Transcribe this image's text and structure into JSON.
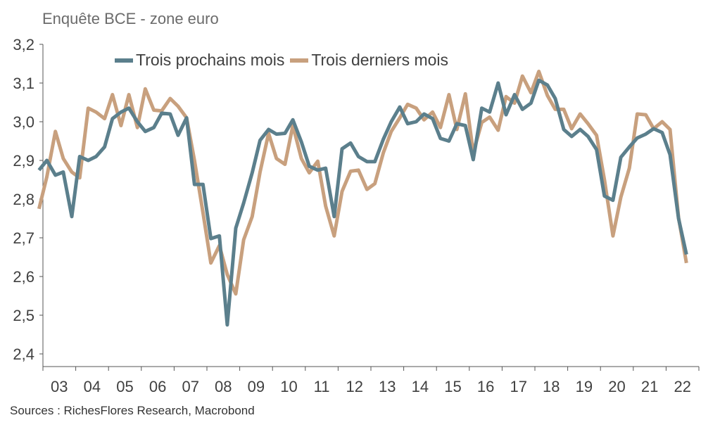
{
  "header": {
    "title": "Enquête BCE - zone euro"
  },
  "footer": {
    "source": "Sources : RichesFlores Research, Macrobond"
  },
  "colors": {
    "series1": "#5b7f8c",
    "series2": "#c8a07e",
    "axis": "#555555"
  },
  "chart_data": {
    "type": "line",
    "title": "Enquête BCE - zone euro",
    "xlabel": "",
    "ylabel": "",
    "ylim": [
      2.4,
      3.2
    ],
    "xlim": [
      2002.75,
      2022.75
    ],
    "y_ticks": [
      "2,4",
      "2,5",
      "2,6",
      "2,7",
      "2,8",
      "2,9",
      "3,0",
      "3,1",
      "3,2"
    ],
    "x_ticks": [
      "03",
      "04",
      "05",
      "06",
      "07",
      "08",
      "09",
      "10",
      "11",
      "12",
      "13",
      "14",
      "15",
      "16",
      "17",
      "18",
      "19",
      "20",
      "21",
      "22"
    ],
    "grid": false,
    "legend_position": "top-left",
    "series": [
      {
        "name": "Trois prochains mois",
        "color": "#5b7f8c",
        "points": [
          [
            2002.88,
            2.875
          ],
          [
            2003.12,
            2.9
          ],
          [
            2003.38,
            2.862
          ],
          [
            2003.62,
            2.87
          ],
          [
            2003.88,
            2.755
          ],
          [
            2004.12,
            2.91
          ],
          [
            2004.38,
            2.9
          ],
          [
            2004.62,
            2.91
          ],
          [
            2004.88,
            2.935
          ],
          [
            2005.12,
            3.008
          ],
          [
            2005.38,
            3.025
          ],
          [
            2005.62,
            3.035
          ],
          [
            2005.88,
            3.0
          ],
          [
            2006.12,
            2.975
          ],
          [
            2006.38,
            2.985
          ],
          [
            2006.62,
            3.022
          ],
          [
            2006.88,
            3.02
          ],
          [
            2007.12,
            2.965
          ],
          [
            2007.38,
            3.01
          ],
          [
            2007.62,
            2.838
          ],
          [
            2007.88,
            2.838
          ],
          [
            2008.12,
            2.698
          ],
          [
            2008.38,
            2.705
          ],
          [
            2008.62,
            2.475
          ],
          [
            2008.88,
            2.725
          ],
          [
            2009.12,
            2.79
          ],
          [
            2009.38,
            2.868
          ],
          [
            2009.62,
            2.952
          ],
          [
            2009.88,
            2.98
          ],
          [
            2010.12,
            2.968
          ],
          [
            2010.38,
            2.97
          ],
          [
            2010.62,
            3.005
          ],
          [
            2010.88,
            2.948
          ],
          [
            2011.12,
            2.885
          ],
          [
            2011.38,
            2.875
          ],
          [
            2011.62,
            2.88
          ],
          [
            2011.88,
            2.755
          ],
          [
            2012.12,
            2.93
          ],
          [
            2012.38,
            2.945
          ],
          [
            2012.62,
            2.91
          ],
          [
            2012.88,
            2.897
          ],
          [
            2013.12,
            2.897
          ],
          [
            2013.38,
            2.955
          ],
          [
            2013.62,
            3.0
          ],
          [
            2013.88,
            3.038
          ],
          [
            2014.12,
            2.995
          ],
          [
            2014.38,
            3.0
          ],
          [
            2014.62,
            3.02
          ],
          [
            2014.88,
            3.008
          ],
          [
            2015.12,
            2.957
          ],
          [
            2015.38,
            2.95
          ],
          [
            2015.62,
            2.995
          ],
          [
            2015.88,
            2.99
          ],
          [
            2016.12,
            2.902
          ],
          [
            2016.38,
            3.035
          ],
          [
            2016.62,
            3.025
          ],
          [
            2016.88,
            3.1
          ],
          [
            2017.12,
            3.018
          ],
          [
            2017.38,
            3.07
          ],
          [
            2017.62,
            3.032
          ],
          [
            2017.88,
            3.048
          ],
          [
            2018.12,
            3.107
          ],
          [
            2018.38,
            3.095
          ],
          [
            2018.62,
            3.06
          ],
          [
            2018.88,
            2.98
          ],
          [
            2019.12,
            2.962
          ],
          [
            2019.38,
            2.98
          ],
          [
            2019.62,
            2.962
          ],
          [
            2019.88,
            2.928
          ],
          [
            2020.12,
            2.808
          ],
          [
            2020.38,
            2.797
          ],
          [
            2020.62,
            2.908
          ],
          [
            2020.88,
            2.935
          ],
          [
            2021.12,
            2.958
          ],
          [
            2021.38,
            2.968
          ],
          [
            2021.62,
            2.982
          ],
          [
            2021.88,
            2.972
          ],
          [
            2022.12,
            2.915
          ],
          [
            2022.38,
            2.75
          ],
          [
            2022.62,
            2.657
          ]
        ]
      },
      {
        "name": "Trois derniers mois",
        "color": "#c8a07e",
        "points": [
          [
            2002.88,
            2.775
          ],
          [
            2003.12,
            2.858
          ],
          [
            2003.38,
            2.975
          ],
          [
            2003.62,
            2.905
          ],
          [
            2003.88,
            2.87
          ],
          [
            2004.12,
            2.855
          ],
          [
            2004.38,
            3.035
          ],
          [
            2004.62,
            3.025
          ],
          [
            2004.88,
            3.008
          ],
          [
            2005.12,
            3.07
          ],
          [
            2005.38,
            2.99
          ],
          [
            2005.62,
            3.07
          ],
          [
            2005.88,
            2.985
          ],
          [
            2006.12,
            3.085
          ],
          [
            2006.38,
            3.03
          ],
          [
            2006.62,
            3.028
          ],
          [
            2006.88,
            3.06
          ],
          [
            2007.12,
            3.04
          ],
          [
            2007.38,
            3.01
          ],
          [
            2007.62,
            2.9
          ],
          [
            2007.88,
            2.765
          ],
          [
            2008.12,
            2.635
          ],
          [
            2008.38,
            2.68
          ],
          [
            2008.62,
            2.605
          ],
          [
            2008.88,
            2.555
          ],
          [
            2009.12,
            2.695
          ],
          [
            2009.38,
            2.755
          ],
          [
            2009.62,
            2.87
          ],
          [
            2009.88,
            2.97
          ],
          [
            2010.12,
            2.905
          ],
          [
            2010.38,
            2.89
          ],
          [
            2010.62,
            2.99
          ],
          [
            2010.88,
            2.905
          ],
          [
            2011.12,
            2.868
          ],
          [
            2011.38,
            2.898
          ],
          [
            2011.62,
            2.782
          ],
          [
            2011.88,
            2.705
          ],
          [
            2012.12,
            2.82
          ],
          [
            2012.38,
            2.872
          ],
          [
            2012.62,
            2.875
          ],
          [
            2012.88,
            2.825
          ],
          [
            2013.12,
            2.84
          ],
          [
            2013.38,
            2.92
          ],
          [
            2013.62,
            2.975
          ],
          [
            2013.88,
            3.01
          ],
          [
            2014.12,
            3.045
          ],
          [
            2014.38,
            3.035
          ],
          [
            2014.62,
            3.005
          ],
          [
            2014.88,
            3.025
          ],
          [
            2015.12,
            2.985
          ],
          [
            2015.38,
            3.07
          ],
          [
            2015.62,
            2.98
          ],
          [
            2015.88,
            3.072
          ],
          [
            2016.12,
            2.92
          ],
          [
            2016.38,
            2.998
          ],
          [
            2016.62,
            3.012
          ],
          [
            2016.88,
            2.978
          ],
          [
            2017.12,
            3.065
          ],
          [
            2017.38,
            3.048
          ],
          [
            2017.62,
            3.118
          ],
          [
            2017.88,
            3.075
          ],
          [
            2018.12,
            3.13
          ],
          [
            2018.38,
            3.068
          ],
          [
            2018.62,
            3.032
          ],
          [
            2018.88,
            3.032
          ],
          [
            2019.12,
            2.982
          ],
          [
            2019.38,
            3.02
          ],
          [
            2019.62,
            2.995
          ],
          [
            2019.88,
            2.965
          ],
          [
            2020.12,
            2.85
          ],
          [
            2020.38,
            2.705
          ],
          [
            2020.62,
            2.805
          ],
          [
            2020.88,
            2.88
          ],
          [
            2021.12,
            3.02
          ],
          [
            2021.38,
            3.018
          ],
          [
            2021.62,
            2.982
          ],
          [
            2021.88,
            3.0
          ],
          [
            2022.12,
            2.98
          ],
          [
            2022.38,
            2.752
          ],
          [
            2022.62,
            2.635
          ]
        ]
      }
    ]
  }
}
